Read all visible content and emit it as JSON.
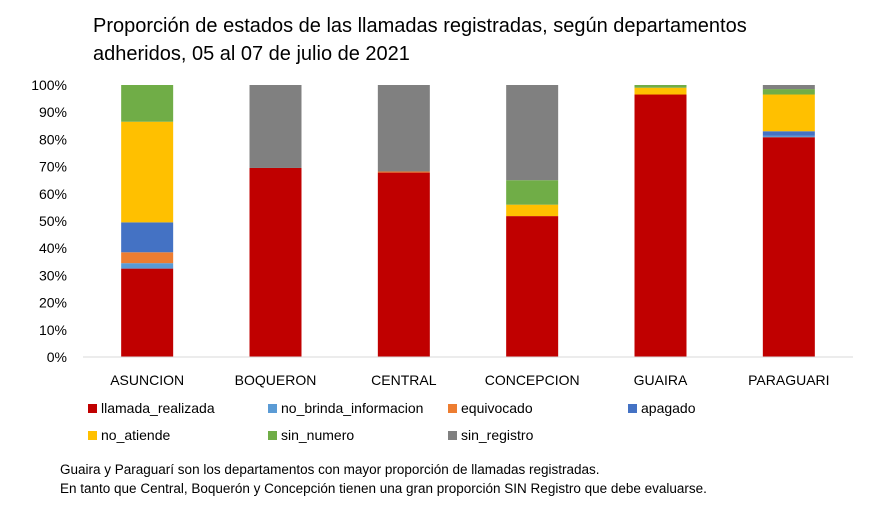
{
  "title": "Proporción de estados de las llamadas registradas, según departamentos adheridos, 05 al 07 de julio de 2021",
  "notes": [
    "Guaira y Paraguarí son los departamentos con mayor proporción de llamadas registradas.",
    "En tanto que Central, Boquerón y Concepción tienen una gran proporción SIN Registro que debe evaluarse."
  ],
  "chart_data": {
    "type": "bar",
    "stacked": true,
    "percent": true,
    "title": "Proporción de estados de las llamadas registradas, según departamentos adheridos, 05 al 07 de julio de 2021",
    "ylim": [
      0,
      100
    ],
    "yticks": [
      "0%",
      "10%",
      "20%",
      "30%",
      "40%",
      "50%",
      "60%",
      "70%",
      "80%",
      "90%",
      "100%"
    ],
    "legend_position": "bottom",
    "grid": false,
    "categories": [
      "ASUNCION",
      "BOQUERON",
      "CENTRAL",
      "CONCEPCION",
      "GUAIRA",
      "PARAGUARI"
    ],
    "series": [
      {
        "name": "llamada_realizada",
        "color": "#C00000",
        "values": [
          32.5,
          69.5,
          67.8,
          51.8,
          96.5,
          80.8
        ]
      },
      {
        "name": "no_brinda_informacion",
        "color": "#5B9BD5",
        "values": [
          2.0,
          0,
          0,
          0,
          0,
          0.5
        ]
      },
      {
        "name": "equivocado",
        "color": "#ED7D31",
        "values": [
          4.0,
          0,
          0.4,
          0,
          0,
          0
        ]
      },
      {
        "name": "apagado",
        "color": "#4472C4",
        "values": [
          11.0,
          0,
          0,
          0,
          0,
          1.7
        ]
      },
      {
        "name": "no_atiende",
        "color": "#FFC000",
        "values": [
          37.0,
          0,
          0,
          4.2,
          2.5,
          13.5
        ]
      },
      {
        "name": "sin_numero",
        "color": "#70AD47",
        "values": [
          13.5,
          0,
          0,
          9.0,
          1.0,
          2.0
        ]
      },
      {
        "name": "sin_registro",
        "color": "#808080",
        "values": [
          0,
          30.5,
          31.8,
          35.0,
          0,
          1.5
        ]
      }
    ]
  }
}
